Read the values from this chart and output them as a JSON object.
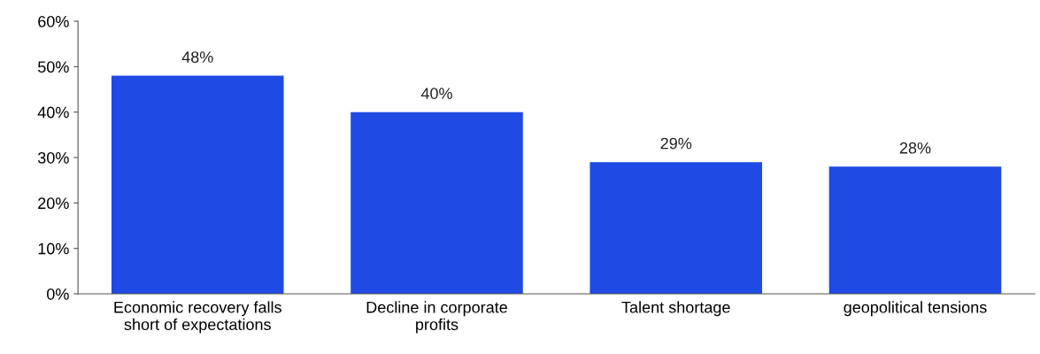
{
  "chart_data": {
    "type": "bar",
    "categories": [
      "Economic recovery falls\nshort of expectations",
      "Decline in corporate\nprofits",
      "Talent shortage",
      "geopolitical tensions"
    ],
    "values": [
      48,
      40,
      29,
      28
    ],
    "value_labels": [
      "48%",
      "40%",
      "29%",
      "28%"
    ],
    "color": "#1f4ae3",
    "ylim": [
      0,
      60
    ],
    "yticks": [
      {
        "value": 0,
        "label": "0%"
      },
      {
        "value": 10,
        "label": "10%"
      },
      {
        "value": 20,
        "label": "20%"
      },
      {
        "value": 30,
        "label": "30%"
      },
      {
        "value": 40,
        "label": "40%"
      },
      {
        "value": 50,
        "label": "50%"
      },
      {
        "value": 60,
        "label": "60%"
      }
    ],
    "grid": false,
    "legend": false
  }
}
